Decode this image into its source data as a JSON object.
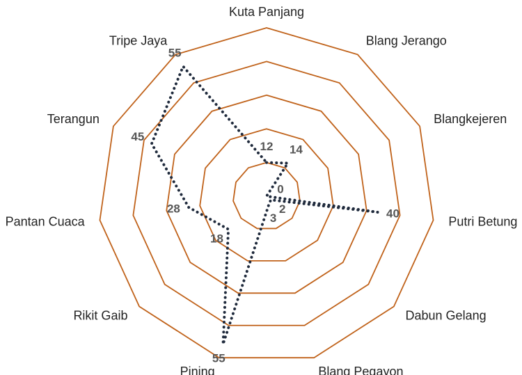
{
  "chart_data": {
    "type": "radar",
    "categories": [
      "Kuta Panjang",
      "Blang Jerango",
      "Blangkejeren",
      "Putri Betung",
      "Dabun Gelang",
      "Blang Pegayon",
      "Pining",
      "Rikit Gaib",
      "Pantan Cuaca",
      "Terangun",
      "Tripe Jaya"
    ],
    "values": [
      12,
      14,
      0,
      40,
      2,
      3,
      55,
      18,
      28,
      45,
      55
    ],
    "color": "#1f2a3c",
    "grid_color": "#c0621a",
    "ylim": [
      0,
      60
    ],
    "yticks": [
      0,
      12,
      24,
      36,
      48,
      60
    ],
    "grid": true
  }
}
